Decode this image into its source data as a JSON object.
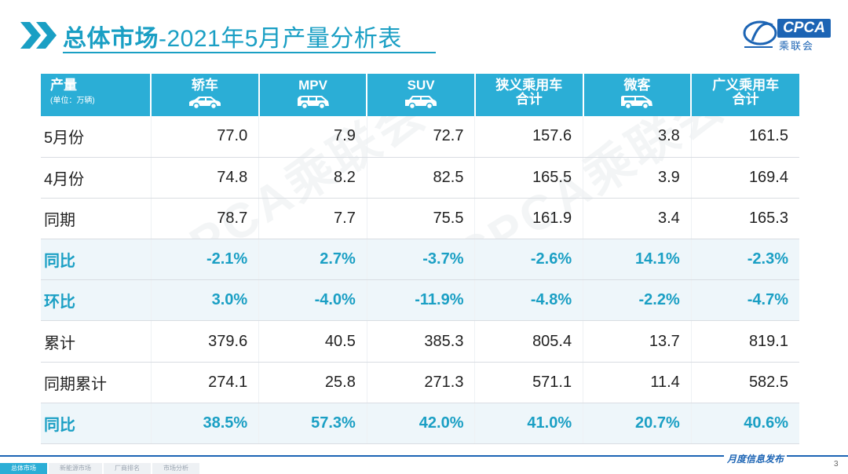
{
  "header": {
    "title_strong": "总体市场",
    "title_rest": "-2021年5月产量分析表",
    "logo_text": "CPCA",
    "logo_sub": "乘联会"
  },
  "table": {
    "corner": {
      "label": "产量",
      "unit": "(单位：万辆)"
    },
    "columns": [
      {
        "line1": "轿车",
        "line2": "",
        "icon": "sedan-icon"
      },
      {
        "line1": "MPV",
        "line2": "",
        "icon": "mpv-icon"
      },
      {
        "line1": "SUV",
        "line2": "",
        "icon": "suv-icon"
      },
      {
        "line1": "狭义乘用车",
        "line2": "合计",
        "icon": ""
      },
      {
        "line1": "微客",
        "line2": "",
        "icon": "van-icon"
      },
      {
        "line1": "广义乘用车",
        "line2": "合计",
        "icon": ""
      }
    ],
    "rows": [
      {
        "label": "5月份",
        "values": [
          "77.0",
          "7.9",
          "72.7",
          "157.6",
          "3.8",
          "161.5"
        ],
        "highlight": false
      },
      {
        "label": "4月份",
        "values": [
          "74.8",
          "8.2",
          "82.5",
          "165.5",
          "3.9",
          "169.4"
        ],
        "highlight": false
      },
      {
        "label": "同期",
        "values": [
          "78.7",
          "7.7",
          "75.5",
          "161.9",
          "3.4",
          "165.3"
        ],
        "highlight": false
      },
      {
        "label": "同比",
        "values": [
          "-2.1%",
          "2.7%",
          "-3.7%",
          "-2.6%",
          "14.1%",
          "-2.3%"
        ],
        "highlight": true
      },
      {
        "label": "环比",
        "values": [
          "3.0%",
          "-4.0%",
          "-11.9%",
          "-4.8%",
          "-2.2%",
          "-4.7%"
        ],
        "highlight": true
      },
      {
        "label": "累计",
        "values": [
          "379.6",
          "40.5",
          "385.3",
          "805.4",
          "13.7",
          "819.1"
        ],
        "highlight": false
      },
      {
        "label": "同期累计",
        "values": [
          "274.1",
          "25.8",
          "271.3",
          "571.1",
          "11.4",
          "582.5"
        ],
        "highlight": false
      },
      {
        "label": "同比",
        "values": [
          "38.5%",
          "57.3%",
          "42.0%",
          "41.0%",
          "20.7%",
          "40.6%"
        ],
        "highlight": true
      }
    ]
  },
  "watermark": "CPCA乘联会",
  "footer": {
    "tag": "月度信息发布",
    "page_number": "3",
    "nav": [
      {
        "label": "总体市场",
        "active": true
      },
      {
        "label": "新能源市场",
        "active": false
      },
      {
        "label": "厂商排名",
        "active": false
      },
      {
        "label": "市场分析",
        "active": false
      }
    ]
  },
  "colors": {
    "accent": "#1a9fc4",
    "header_bg": "#2baed6",
    "brand_blue": "#1c64b4",
    "highlight_row_bg": "#eef6fa"
  }
}
